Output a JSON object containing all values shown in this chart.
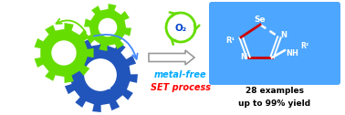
{
  "bg_color": "#ffffff",
  "green_color": "#66dd00",
  "blue_gear_color": "#2255bb",
  "blue_box_color": "#4da6ff",
  "metal_free_color": "#00aaff",
  "set_process_color": "#ff0000",
  "metal_free_text": "metal-free",
  "set_process_text": "SET process",
  "examples_text": "28 examples",
  "yield_text": "up to 99% yield",
  "bond_red": "#cc0000",
  "bond_white": "#ffffff"
}
